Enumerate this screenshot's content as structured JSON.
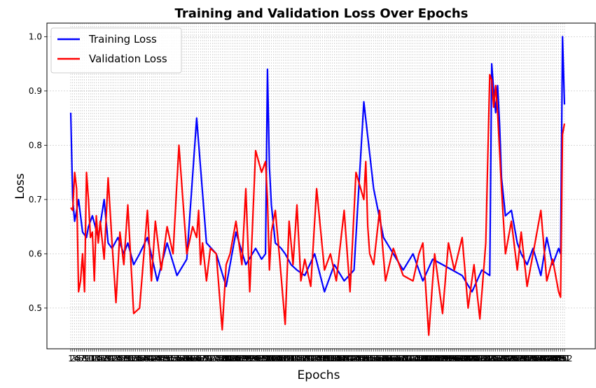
{
  "chart_data": {
    "type": "line",
    "title": "Training and Validation Loss Over Epochs",
    "xlabel": "Epochs",
    "ylabel": "Loss",
    "xlim": [
      1,
      252
    ],
    "ylim": [
      0.425,
      1.025
    ],
    "yticks": [
      0.5,
      0.6,
      0.7,
      0.8,
      0.9,
      1.0
    ],
    "ytick_labels": [
      "0.5",
      "0.6",
      "0.7",
      "0.8",
      "0.9",
      "1.0"
    ],
    "grid": true,
    "legend_position": "upper-left",
    "series": [
      {
        "name": "Training Loss",
        "color": "#0000ff",
        "x": [
          1,
          2,
          3,
          5,
          7,
          9,
          10,
          12,
          15,
          18,
          20,
          22,
          25,
          28,
          30,
          33,
          36,
          40,
          45,
          50,
          55,
          60,
          65,
          70,
          75,
          80,
          85,
          90,
          95,
          98,
          100,
          101,
          102,
          103,
          105,
          108,
          110,
          113,
          116,
          120,
          125,
          130,
          135,
          140,
          145,
          150,
          155,
          160,
          165,
          170,
          175,
          180,
          185,
          190,
          195,
          200,
          205,
          210,
          214,
          215,
          216,
          217,
          218,
          219,
          220,
          222,
          225,
          228,
          230,
          233,
          236,
          240,
          243,
          246,
          249,
          250,
          251,
          252
        ],
        "y": [
          0.86,
          0.7,
          0.66,
          0.7,
          0.64,
          0.63,
          0.65,
          0.67,
          0.63,
          0.7,
          0.62,
          0.61,
          0.63,
          0.6,
          0.62,
          0.58,
          0.6,
          0.63,
          0.55,
          0.62,
          0.56,
          0.59,
          0.85,
          0.62,
          0.6,
          0.54,
          0.64,
          0.58,
          0.61,
          0.59,
          0.6,
          0.94,
          0.76,
          0.69,
          0.62,
          0.61,
          0.6,
          0.58,
          0.57,
          0.56,
          0.6,
          0.53,
          0.58,
          0.55,
          0.57,
          0.88,
          0.72,
          0.63,
          0.6,
          0.57,
          0.6,
          0.55,
          0.59,
          0.58,
          0.57,
          0.56,
          0.53,
          0.57,
          0.56,
          0.95,
          0.9,
          0.86,
          0.91,
          0.84,
          0.74,
          0.67,
          0.68,
          0.62,
          0.6,
          0.58,
          0.61,
          0.56,
          0.63,
          0.58,
          0.61,
          0.6,
          1.0,
          0.875
        ]
      },
      {
        "name": "Validation Loss",
        "color": "#ff0000",
        "x": [
          1,
          2,
          3,
          4,
          5,
          6,
          7,
          8,
          9,
          10,
          11,
          12,
          13,
          14,
          15,
          16,
          18,
          20,
          22,
          24,
          26,
          28,
          30,
          33,
          36,
          40,
          42,
          44,
          47,
          50,
          53,
          56,
          60,
          63,
          65,
          66,
          67,
          68,
          70,
          72,
          75,
          78,
          80,
          82,
          85,
          88,
          90,
          92,
          95,
          98,
          100,
          101,
          102,
          103,
          105,
          107,
          110,
          112,
          114,
          116,
          118,
          120,
          123,
          126,
          130,
          133,
          136,
          140,
          143,
          146,
          150,
          151,
          152,
          153,
          155,
          158,
          161,
          165,
          170,
          175,
          178,
          180,
          183,
          186,
          190,
          193,
          196,
          200,
          203,
          206,
          209,
          212,
          214,
          215,
          216,
          217,
          218,
          219,
          220,
          222,
          225,
          228,
          230,
          233,
          236,
          240,
          243,
          246,
          249,
          250,
          251,
          252
        ],
        "y": [
          0.685,
          0.68,
          0.75,
          0.72,
          0.53,
          0.55,
          0.6,
          0.53,
          0.75,
          0.7,
          0.63,
          0.64,
          0.55,
          0.67,
          0.62,
          0.66,
          0.59,
          0.74,
          0.62,
          0.51,
          0.64,
          0.58,
          0.69,
          0.49,
          0.5,
          0.68,
          0.55,
          0.66,
          0.57,
          0.65,
          0.6,
          0.8,
          0.6,
          0.65,
          0.63,
          0.68,
          0.58,
          0.62,
          0.55,
          0.61,
          0.6,
          0.46,
          0.58,
          0.6,
          0.66,
          0.58,
          0.72,
          0.53,
          0.79,
          0.75,
          0.77,
          0.7,
          0.57,
          0.64,
          0.68,
          0.6,
          0.47,
          0.66,
          0.58,
          0.69,
          0.55,
          0.59,
          0.54,
          0.72,
          0.57,
          0.6,
          0.55,
          0.68,
          0.53,
          0.75,
          0.7,
          0.77,
          0.65,
          0.6,
          0.58,
          0.68,
          0.55,
          0.61,
          0.56,
          0.55,
          0.6,
          0.62,
          0.45,
          0.6,
          0.49,
          0.62,
          0.57,
          0.63,
          0.5,
          0.58,
          0.48,
          0.62,
          0.93,
          0.92,
          0.87,
          0.91,
          0.86,
          0.79,
          0.72,
          0.6,
          0.66,
          0.57,
          0.64,
          0.54,
          0.6,
          0.68,
          0.55,
          0.59,
          0.53,
          0.52,
          0.82,
          0.84
        ]
      }
    ]
  }
}
